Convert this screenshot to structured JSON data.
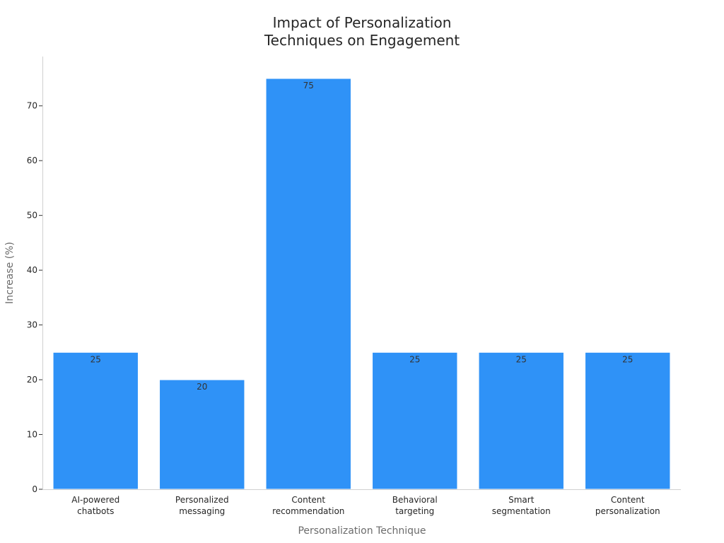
{
  "chart_data": {
    "type": "bar",
    "title_lines": [
      "Impact of Personalization",
      "Techniques on Engagement"
    ],
    "xlabel": "Personalization Technique",
    "ylabel": "Increase (%)",
    "categories": [
      [
        "AI-powered",
        "chatbots"
      ],
      [
        "Personalized",
        "messaging"
      ],
      [
        "Content",
        "recommendation"
      ],
      [
        "Behavioral",
        "targeting"
      ],
      [
        "Smart",
        "segmentation"
      ],
      [
        "Content",
        "personalization"
      ]
    ],
    "values": [
      25,
      20,
      75,
      25,
      25,
      25
    ],
    "ylim": [
      0,
      79
    ],
    "yticks": [
      0,
      10,
      20,
      30,
      40,
      50,
      60,
      70
    ],
    "grid": false,
    "bar_color": "#2f92f7",
    "bar_edge_color": "#ffffff"
  }
}
